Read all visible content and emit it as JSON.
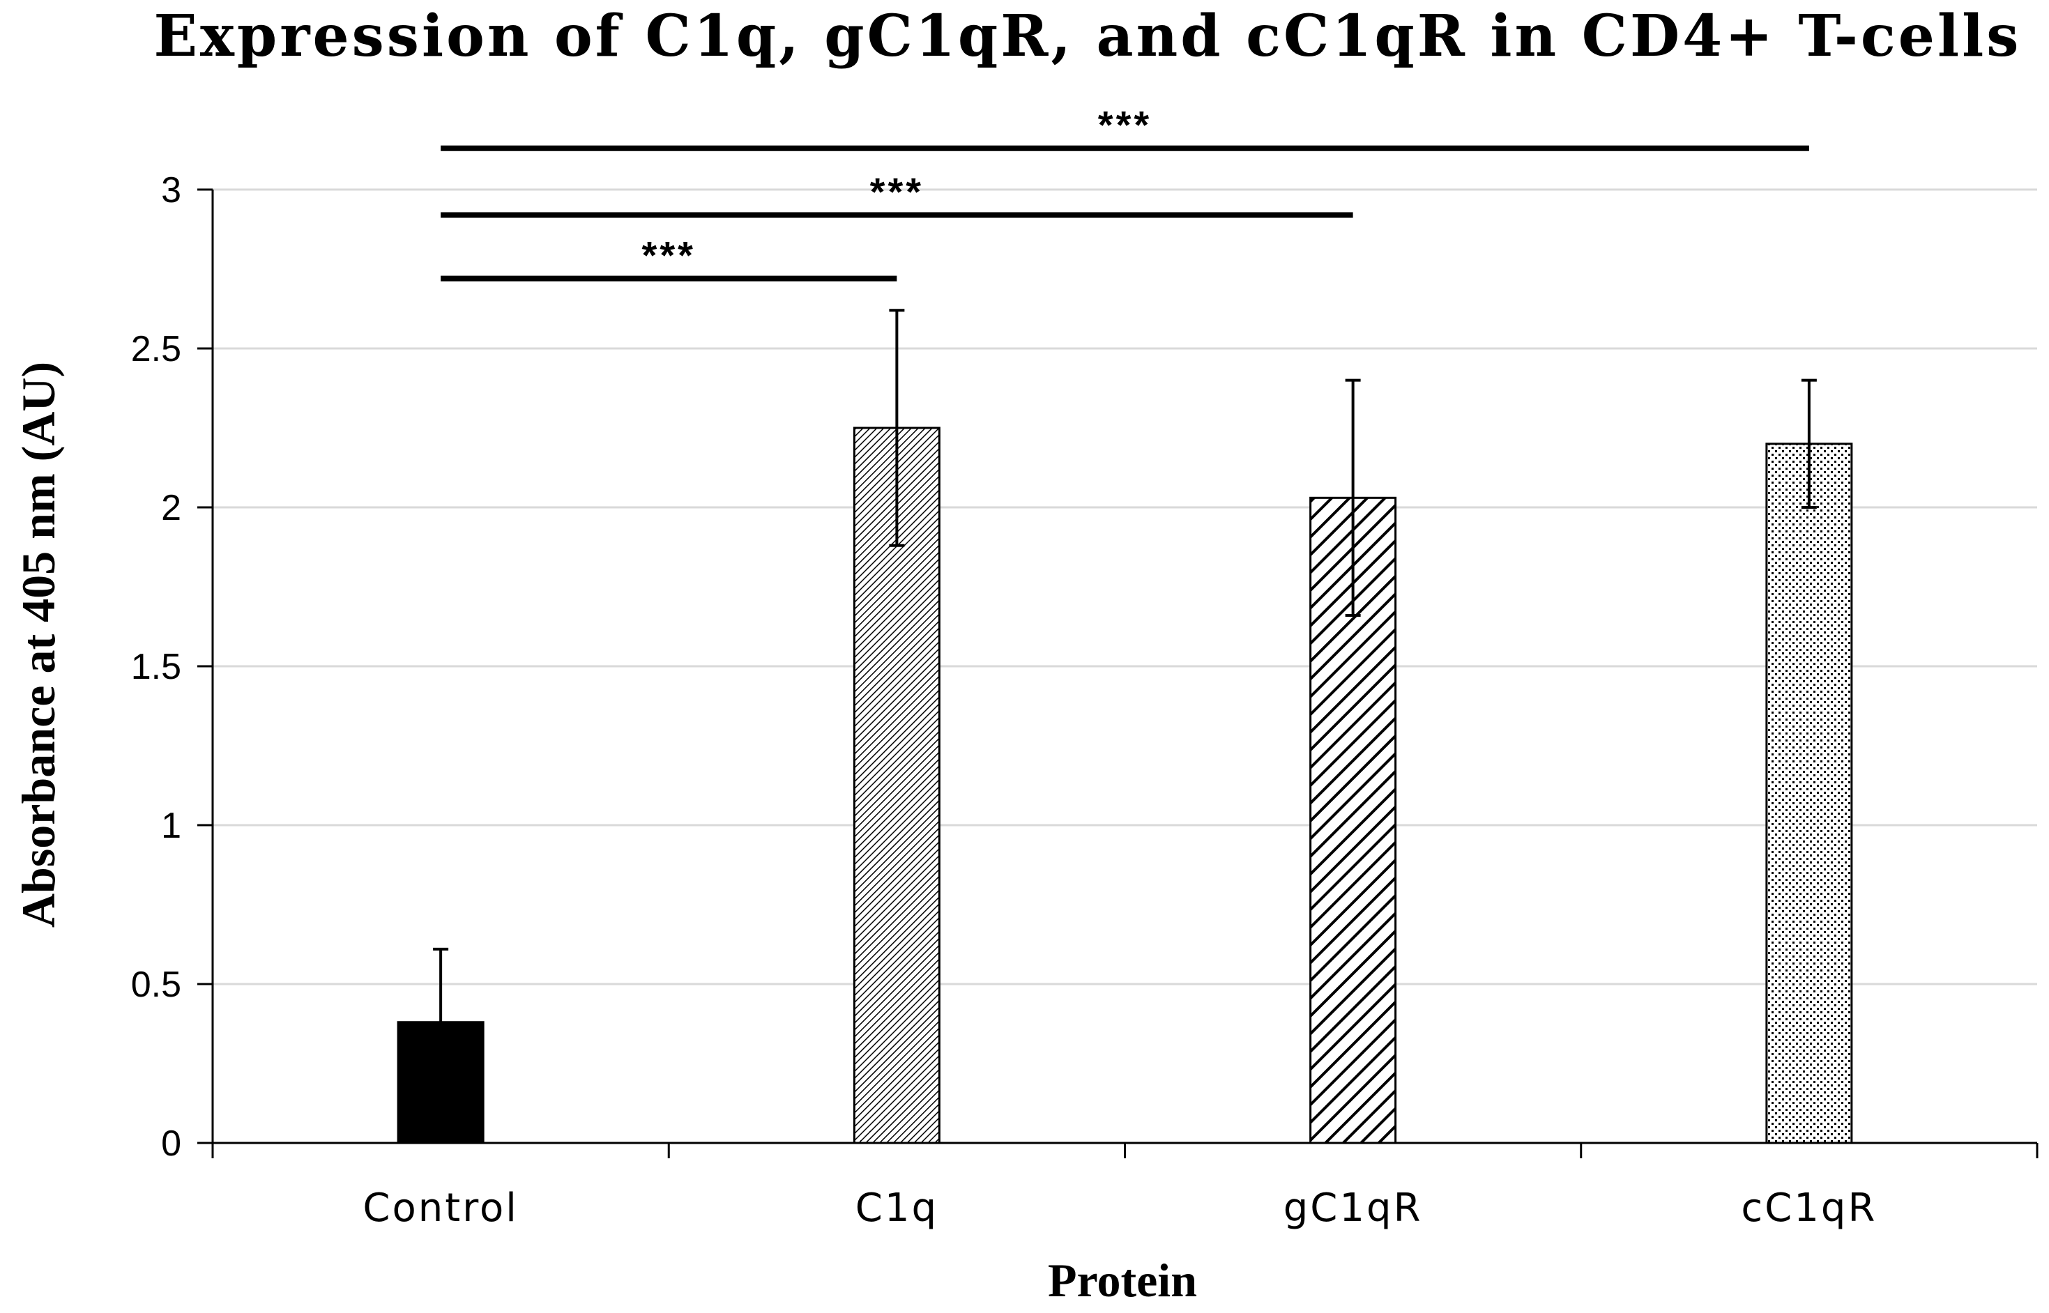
{
  "chart_data": {
    "type": "bar",
    "title": "Expression of C1q, gC1qR, and cC1qR in CD4+ T-cells",
    "xlabel": "Protein",
    "ylabel": "Absorbance at 405 nm (AU)",
    "ylim": [
      0,
      3
    ],
    "yticks": [
      {
        "value": 0,
        "label": "0"
      },
      {
        "value": 0.5,
        "label": "0.5"
      },
      {
        "value": 1,
        "label": "1"
      },
      {
        "value": 1.5,
        "label": "1.5"
      },
      {
        "value": 2,
        "label": "2"
      },
      {
        "value": 2.5,
        "label": "2.5"
      },
      {
        "value": 3,
        "label": "3"
      }
    ],
    "grid": true,
    "categories": [
      "Control",
      "C1q",
      "gC1qR",
      "cC1qR"
    ],
    "values": [
      0.38,
      2.25,
      2.03,
      2.2
    ],
    "error": [
      0.23,
      0.37,
      0.37,
      0.2
    ],
    "fills": [
      "solid",
      "fine-hatch",
      "diagonal-hatch",
      "dots"
    ],
    "significance": [
      {
        "from": "Control",
        "to": "C1q",
        "label": "***",
        "level": 2.72
      },
      {
        "from": "Control",
        "to": "gC1qR",
        "label": "***",
        "level": 2.92
      },
      {
        "from": "Control",
        "to": "cC1qR",
        "label": "***",
        "level": 3.13
      }
    ],
    "colors": {
      "bar_stroke": "#000000",
      "grid": "#d9d9d9",
      "axis": "#000000"
    }
  }
}
